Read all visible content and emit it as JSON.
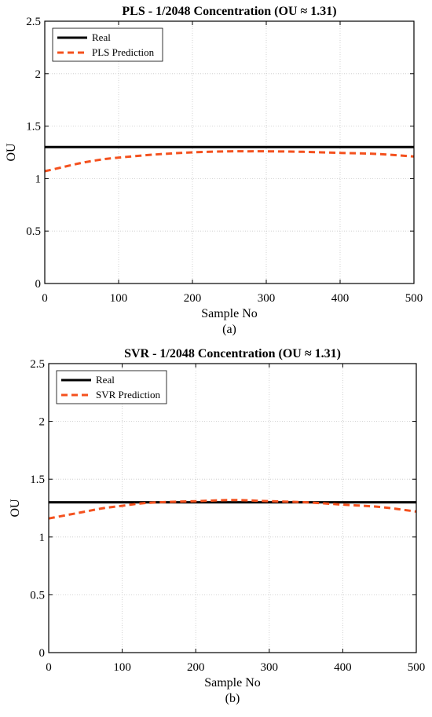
{
  "chart_data": [
    {
      "type": "line",
      "title": "PLS - 1/2048 Concentration (OU ≈ 1.31)",
      "xlabel": "Sample No",
      "ylabel": "OU",
      "caption": "(a)",
      "xlim": [
        0,
        500
      ],
      "ylim": [
        0,
        2.5
      ],
      "xticks": [
        "0",
        "100",
        "200",
        "300",
        "400",
        "500"
      ],
      "yticks": [
        "0",
        "0.5",
        "1",
        "1.5",
        "2",
        "2.5"
      ],
      "grid": true,
      "legend_position": "top-left",
      "series": [
        {
          "name": "Real",
          "color": "#000000",
          "style": "solid",
          "x": [
            0,
            500
          ],
          "y": [
            1.3,
            1.3
          ]
        },
        {
          "name": "PLS Prediction",
          "color": "#f4511e",
          "style": "dashed",
          "x": [
            0,
            25,
            50,
            75,
            100,
            150,
            200,
            250,
            275,
            300,
            350,
            400,
            450,
            500
          ],
          "y": [
            1.07,
            1.11,
            1.15,
            1.18,
            1.2,
            1.23,
            1.25,
            1.26,
            1.26,
            1.26,
            1.255,
            1.245,
            1.235,
            1.21
          ]
        }
      ]
    },
    {
      "type": "line",
      "title": "SVR - 1/2048 Concentration (OU ≈ 1.31)",
      "xlabel": "Sample No",
      "ylabel": "OU",
      "caption": "(b)",
      "xlim": [
        0,
        500
      ],
      "ylim": [
        0,
        2.5
      ],
      "xticks": [
        "0",
        "100",
        "200",
        "300",
        "400",
        "500"
      ],
      "yticks": [
        "0",
        "0.5",
        "1",
        "1.5",
        "2",
        "2.5"
      ],
      "grid": true,
      "legend_position": "top-left",
      "series": [
        {
          "name": "Real",
          "color": "#000000",
          "style": "solid",
          "x": [
            0,
            500
          ],
          "y": [
            1.3,
            1.3
          ]
        },
        {
          "name": "SVR Prediction",
          "color": "#f4511e",
          "style": "dashed",
          "x": [
            0,
            25,
            50,
            75,
            100,
            125,
            150,
            200,
            250,
            300,
            350,
            400,
            450,
            500
          ],
          "y": [
            1.16,
            1.19,
            1.22,
            1.25,
            1.27,
            1.29,
            1.3,
            1.31,
            1.32,
            1.31,
            1.3,
            1.28,
            1.26,
            1.22
          ]
        }
      ]
    }
  ]
}
